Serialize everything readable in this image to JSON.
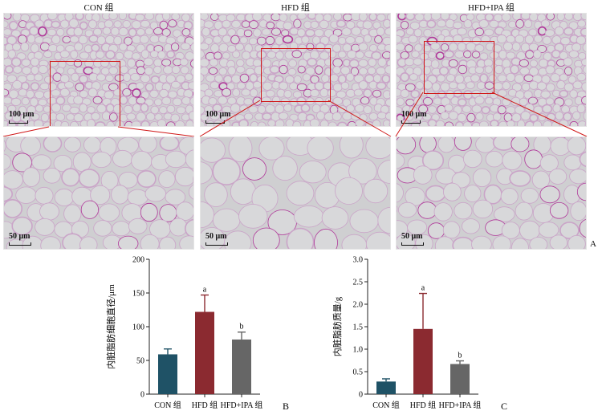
{
  "panel_A": {
    "columns": [
      "CON 组",
      "HFD 组",
      "HFD+IPA 组"
    ],
    "scale_top": "100 μm",
    "scale_bottom": "50 μm",
    "letter": "A"
  },
  "chart_data": [
    {
      "type": "bar",
      "letter": "B",
      "categories": [
        "CON 组",
        "HFD 组",
        "HFD+IPA 组"
      ],
      "values": [
        59,
        122,
        81
      ],
      "errors": [
        8,
        25,
        11
      ],
      "significance": [
        "",
        "a",
        "b"
      ],
      "colors": [
        "#1f5266",
        "#8b2a30",
        "#666666"
      ],
      "ylabel": "内脏脂肪细胞直径/μm",
      "ylim": [
        0,
        200
      ],
      "yticks": [
        "0",
        "50",
        "100",
        "150",
        "200"
      ]
    },
    {
      "type": "bar",
      "letter": "C",
      "categories": [
        "CON 组",
        "HFD 组",
        "HFD+IPA 组"
      ],
      "values": [
        0.28,
        1.45,
        0.67
      ],
      "errors": [
        0.06,
        0.79,
        0.07
      ],
      "significance": [
        "",
        "a",
        "b"
      ],
      "colors": [
        "#1f5266",
        "#8b2a30",
        "#666666"
      ],
      "ylabel": "内脏脂肪质量/g",
      "ylim": [
        0,
        3.0
      ],
      "yticks": [
        "0",
        "0.5",
        "1.0",
        "1.5",
        "2.0",
        "2.5",
        "3.0"
      ]
    }
  ]
}
